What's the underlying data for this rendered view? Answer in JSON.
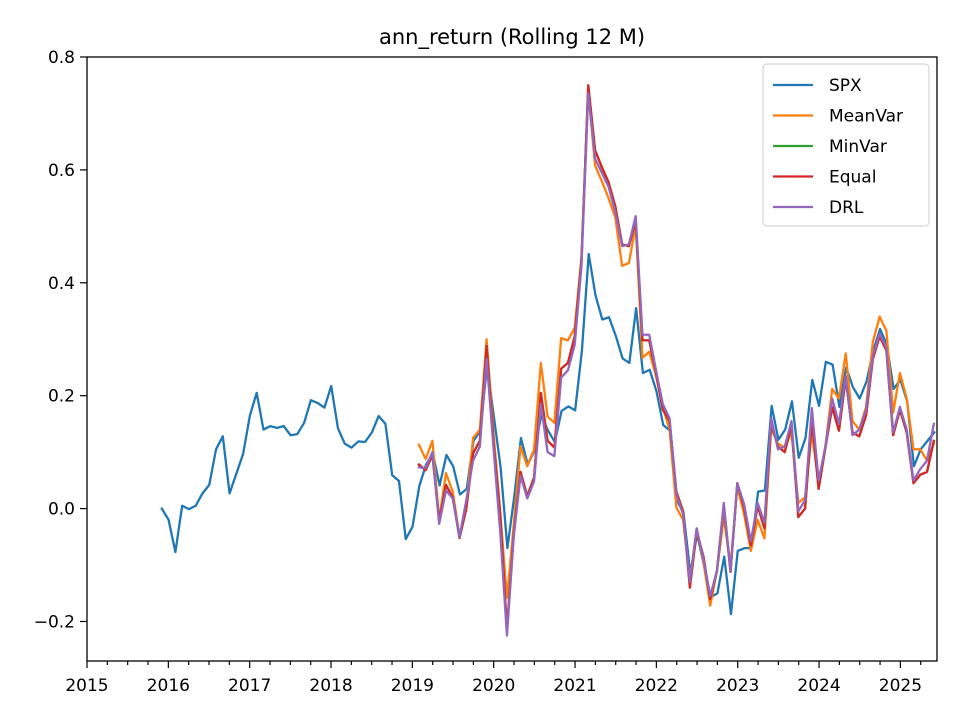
{
  "chart_data": {
    "type": "line",
    "title": "ann_return (Rolling 12 M)",
    "xlabel": "",
    "ylabel": "",
    "xlim": [
      2015.0,
      2025.45
    ],
    "ylim": [
      -0.27,
      0.8
    ],
    "x_ticks": [
      2015,
      2016,
      2017,
      2018,
      2019,
      2020,
      2021,
      2022,
      2023,
      2024,
      2025
    ],
    "x_tick_labels": [
      "2015",
      "2016",
      "2017",
      "2018",
      "2019",
      "2020",
      "2021",
      "2022",
      "2023",
      "2024",
      "2025"
    ],
    "y_ticks": [
      -0.2,
      0.0,
      0.2,
      0.4,
      0.6,
      0.8
    ],
    "y_tick_labels": [
      "−0.2",
      "0.0",
      "0.2",
      "0.4",
      "0.6",
      "0.8"
    ],
    "grid": false,
    "legend_position": "top-right",
    "series": [
      {
        "name": "SPX",
        "color": "#1f77b4",
        "x_start": 2015.92,
        "x_step": 0.0833,
        "values": [
          0.0,
          -0.02,
          -0.077,
          0.005,
          -0.001,
          0.005,
          0.027,
          0.042,
          0.105,
          0.128,
          0.027,
          0.062,
          0.097,
          0.165,
          0.205,
          0.14,
          0.146,
          0.143,
          0.146,
          0.13,
          0.132,
          0.152,
          0.192,
          0.187,
          0.179,
          0.217,
          0.142,
          0.115,
          0.108,
          0.119,
          0.118,
          0.135,
          0.164,
          0.15,
          0.059,
          0.049,
          -0.054,
          -0.032,
          0.04,
          0.078,
          0.098,
          0.041,
          0.095,
          0.075,
          0.025,
          0.035,
          0.12,
          0.138,
          0.253,
          0.163,
          0.073,
          -0.07,
          0.02,
          0.125,
          0.078,
          0.103,
          0.165,
          0.138,
          0.118,
          0.173,
          0.181,
          0.174,
          0.28,
          0.451,
          0.378,
          0.335,
          0.339,
          0.306,
          0.266,
          0.258,
          0.355,
          0.24,
          0.246,
          0.208,
          0.148,
          0.138,
          0.015,
          -0.008,
          -0.115,
          -0.045,
          -0.1,
          -0.157,
          -0.15,
          -0.085,
          -0.187,
          -0.075,
          -0.07,
          -0.07,
          0.03,
          0.032,
          0.182,
          0.122,
          0.14,
          0.19,
          0.09,
          0.125,
          0.228,
          0.182,
          0.26,
          0.255,
          0.18,
          0.25,
          0.215,
          0.195,
          0.225,
          0.28,
          0.318,
          0.29,
          0.212,
          0.228,
          0.19,
          0.075,
          0.105,
          0.12,
          0.135
        ]
      },
      {
        "name": "MeanVar",
        "color": "#ff7f0e",
        "x_start": 2019.08,
        "x_step": 0.0833,
        "values": [
          0.113,
          0.088,
          0.12,
          -0.02,
          0.063,
          0.03,
          -0.05,
          0.005,
          0.125,
          0.14,
          0.3,
          0.135,
          -0.005,
          -0.158,
          -0.03,
          0.11,
          0.075,
          0.105,
          0.258,
          0.163,
          0.152,
          0.302,
          0.298,
          0.32,
          0.445,
          0.74,
          0.608,
          0.58,
          0.55,
          0.515,
          0.43,
          0.435,
          0.502,
          0.267,
          0.278,
          0.235,
          0.18,
          0.14,
          0.002,
          -0.02,
          -0.127,
          -0.035,
          -0.095,
          -0.172,
          -0.11,
          -0.015,
          -0.1,
          0.038,
          -0.01,
          -0.075,
          -0.02,
          -0.053,
          0.142,
          0.115,
          0.108,
          0.135,
          0.01,
          0.02,
          0.135,
          0.045,
          0.11,
          0.212,
          0.195,
          0.275,
          0.155,
          0.14,
          0.18,
          0.295,
          0.34,
          0.315,
          0.17,
          0.24,
          0.195,
          0.105,
          0.105,
          0.085,
          0.115
        ]
      },
      {
        "name": "MinVar",
        "color": "#2ca02c",
        "x_start": 2019.08,
        "x_step": 0.0833,
        "values": [
          0.078,
          0.068,
          0.095,
          -0.022,
          0.042,
          0.02,
          -0.052,
          0.0,
          0.098,
          0.12,
          0.288,
          0.12,
          -0.01,
          -0.215,
          -0.045,
          0.065,
          0.022,
          0.055,
          0.205,
          0.12,
          0.108,
          0.248,
          0.258,
          0.305,
          0.44,
          0.75,
          0.635,
          0.605,
          0.578,
          0.535,
          0.468,
          0.465,
          0.51,
          0.298,
          0.298,
          0.24,
          0.175,
          0.155,
          0.03,
          -0.005,
          -0.14,
          -0.04,
          -0.085,
          -0.16,
          -0.11,
          0.005,
          -0.112,
          0.045,
          0.002,
          -0.065,
          0.005,
          -0.035,
          0.15,
          0.11,
          0.1,
          0.148,
          -0.015,
          0.0,
          0.158,
          0.035,
          0.108,
          0.18,
          0.138,
          0.23,
          0.135,
          0.128,
          0.165,
          0.265,
          0.305,
          0.28,
          0.13,
          0.175,
          0.135,
          0.045,
          0.06,
          0.065,
          0.12
        ]
      },
      {
        "name": "Equal",
        "color": "#d62728",
        "x_start": 2019.08,
        "x_step": 0.0833,
        "values": [
          0.078,
          0.068,
          0.095,
          -0.022,
          0.042,
          0.02,
          -0.052,
          0.0,
          0.098,
          0.12,
          0.288,
          0.12,
          -0.01,
          -0.215,
          -0.045,
          0.065,
          0.022,
          0.055,
          0.205,
          0.12,
          0.108,
          0.248,
          0.258,
          0.305,
          0.44,
          0.75,
          0.635,
          0.605,
          0.578,
          0.535,
          0.468,
          0.465,
          0.51,
          0.298,
          0.298,
          0.24,
          0.175,
          0.155,
          0.03,
          -0.005,
          -0.14,
          -0.04,
          -0.085,
          -0.16,
          -0.11,
          0.005,
          -0.112,
          0.045,
          0.002,
          -0.065,
          0.005,
          -0.035,
          0.15,
          0.11,
          0.1,
          0.148,
          -0.015,
          0.0,
          0.158,
          0.035,
          0.108,
          0.18,
          0.138,
          0.23,
          0.135,
          0.128,
          0.165,
          0.265,
          0.305,
          0.28,
          0.13,
          0.175,
          0.135,
          0.045,
          0.06,
          0.065,
          0.12
        ]
      },
      {
        "name": "DRL",
        "color": "#9467bd",
        "x_start": 2019.08,
        "x_step": 0.0833,
        "values": [
          0.073,
          0.072,
          0.1,
          -0.027,
          0.032,
          0.018,
          -0.05,
          0.015,
          0.085,
          0.11,
          0.265,
          0.11,
          -0.04,
          -0.225,
          -0.05,
          0.058,
          0.018,
          0.048,
          0.185,
          0.1,
          0.093,
          0.232,
          0.245,
          0.29,
          0.43,
          0.735,
          0.62,
          0.595,
          0.57,
          0.525,
          0.465,
          0.468,
          0.518,
          0.308,
          0.308,
          0.245,
          0.185,
          0.16,
          0.025,
          -0.01,
          -0.13,
          -0.035,
          -0.09,
          -0.155,
          -0.11,
          0.01,
          -0.11,
          0.045,
          0.008,
          -0.058,
          0.01,
          -0.025,
          0.16,
          0.105,
          0.11,
          0.155,
          -0.005,
          0.015,
          0.178,
          0.05,
          0.11,
          0.195,
          0.15,
          0.235,
          0.13,
          0.14,
          0.175,
          0.27,
          0.31,
          0.285,
          0.135,
          0.18,
          0.14,
          0.05,
          0.07,
          0.085,
          0.15
        ]
      }
    ]
  }
}
